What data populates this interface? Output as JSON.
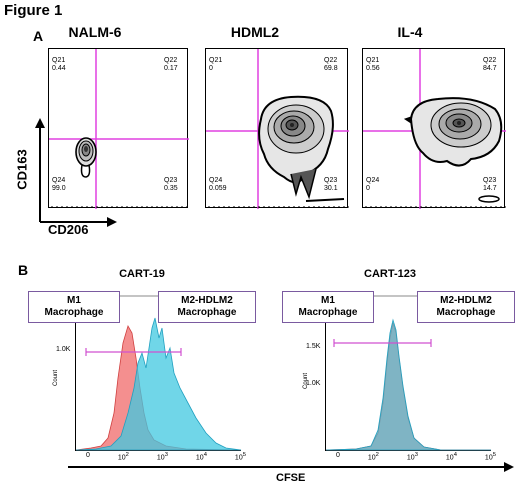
{
  "figure_title": "Figure 1",
  "panel_a": {
    "letter": "A",
    "y_axis_label": "CD163",
    "x_axis_label": "CD206",
    "plots": [
      {
        "title": "NALM-6",
        "q21": "Q21",
        "q21v": "0.44",
        "q22": "Q22",
        "q22v": "0.17",
        "q24": "Q24",
        "q24v": "99.0",
        "q23": "Q23",
        "q23v": "0.35"
      },
      {
        "title": "HDML2",
        "q21": "Q21",
        "q21v": "0",
        "q22": "Q22",
        "q22v": "69.8",
        "q24": "Q24",
        "q24v": "0.059",
        "q23": "Q23",
        "q23v": "30.1"
      },
      {
        "title": "IL-4",
        "q21": "Q21",
        "q21v": "0.56",
        "q22": "Q22",
        "q22v": "84.7",
        "q24": "Q24",
        "q24v": "0",
        "q23": "Q23",
        "q23v": "14.7"
      }
    ]
  },
  "panel_b": {
    "letter": "B",
    "x_axis_label": "CFSE",
    "y_label": "Count",
    "left": {
      "title": "CART-19",
      "m1": "M1 Macrophage",
      "m1a": "M1",
      "m1b": "Macrophage",
      "m2a": "M2-HDLM2",
      "m2b": "Macrophage",
      "ytick": "1.0K"
    },
    "right": {
      "title": "CART-123",
      "m1a": "M1",
      "m1b": "Macrophage",
      "m2a": "M2-HDLM2",
      "m2b": "Macrophage",
      "ytick1": "1.5K",
      "ytick2": "1.0K"
    },
    "xticks": [
      "0",
      "10",
      "10",
      "10",
      "10"
    ],
    "xtick_sup": [
      "",
      "2",
      "3",
      "4",
      "5"
    ]
  },
  "colors": {
    "quad_line": "#e040e0",
    "m1_fill": "#f06a6a",
    "m2_fill": "#40c8e0",
    "gate": "#d050d0"
  }
}
